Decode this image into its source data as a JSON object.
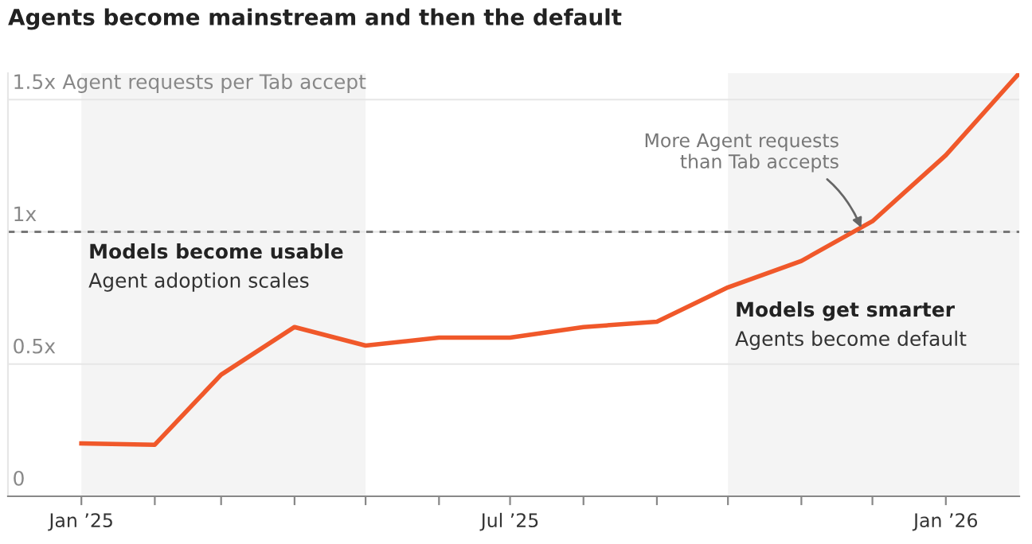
{
  "chart_data": {
    "type": "line",
    "title": "Agents become mainstream and then the default",
    "ylabel": "Agent requests per Tab accept",
    "x": [
      "2025-01",
      "2025-02",
      "2025-03",
      "2025-04",
      "2025-05",
      "2025-06",
      "2025-07",
      "2025-08",
      "2025-09",
      "2025-10",
      "2025-11",
      "2025-12",
      "2026-01",
      "2026-02"
    ],
    "series": [
      {
        "color": "#f0582a",
        "values": [
          0.2,
          0.195,
          0.46,
          0.64,
          0.57,
          0.6,
          0.6,
          0.64,
          0.66,
          0.79,
          0.89,
          1.04,
          1.29,
          1.6
        ]
      }
    ],
    "xlim": [
      "2024-12",
      "2026-02"
    ],
    "xticks": [
      {
        "value": "2025-01",
        "label": "Jan ’25"
      },
      {
        "value": "2025-02",
        "label": null
      },
      {
        "value": "2025-03",
        "label": null
      },
      {
        "value": "2025-04",
        "label": null
      },
      {
        "value": "2025-05",
        "label": null
      },
      {
        "value": "2025-06",
        "label": null
      },
      {
        "value": "2025-07",
        "label": "Jul ’25"
      },
      {
        "value": "2025-08",
        "label": null
      },
      {
        "value": "2025-09",
        "label": null
      },
      {
        "value": "2025-10",
        "label": null
      },
      {
        "value": "2025-11",
        "label": null
      },
      {
        "value": "2025-12",
        "label": null
      },
      {
        "value": "2026-01",
        "label": "Jan ’26"
      }
    ],
    "ylim": [
      0,
      1.6
    ],
    "yticks": [
      {
        "value": 0,
        "label": "0"
      },
      {
        "value": 0.5,
        "label": "0.5x"
      },
      {
        "value": 1,
        "label": "1x"
      },
      {
        "value": 1.5,
        "label": "1.5x"
      }
    ],
    "grid": "y",
    "marker": "none",
    "line_style": "solid",
    "ref_lines": [
      {
        "axis": "y",
        "value": 1,
        "color": "#777777",
        "line_style": "dashed"
      }
    ],
    "bands": [
      {
        "axis": "x",
        "from": "2025-01",
        "to": "2025-05",
        "label": "Models become usable\nAgent adoption scales",
        "color": "#f4f4f4"
      },
      {
        "axis": "x",
        "from": "2025-10",
        "to": "2026-02",
        "label": "Models get smarter\nAgents become default",
        "color": "#f4f4f4"
      }
    ],
    "annotations": [
      {
        "text": "More Agent requests\nthan Tab accepts",
        "x": "2025-11-27",
        "y": 1
      }
    ]
  }
}
